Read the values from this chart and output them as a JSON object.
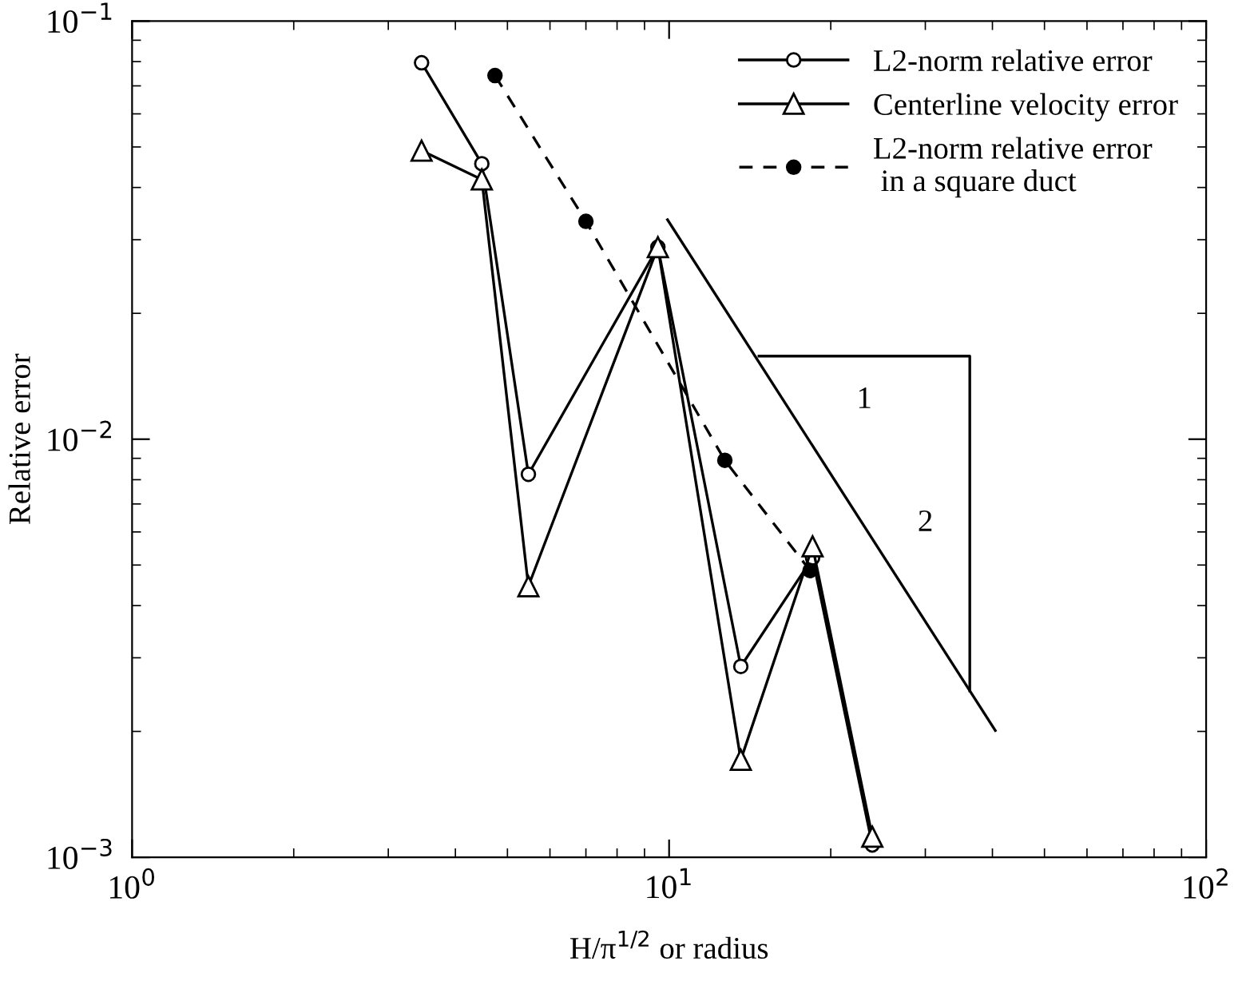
{
  "chart_data": {
    "type": "line",
    "xlabel": "H/π$^{1/2}$ or radius",
    "ylabel": "Relative error",
    "log": "xy",
    "grid": false,
    "legend": "top right",
    "xlim": [
      1,
      100
    ],
    "ylim": [
      0.001,
      0.1
    ],
    "xticks": [
      {
        "value": 1,
        "label": "10$^{0}$"
      },
      {
        "value": 10,
        "label": "10$^{1}$"
      },
      {
        "value": 100,
        "label": "10$^{2}$"
      }
    ],
    "yticks": [
      {
        "value": 0.001,
        "label": "10$^{−3}$"
      },
      {
        "value": 0.01,
        "label": "10$^{−2}$"
      },
      {
        "value": 0.1,
        "label": "10$^{−1}$"
      }
    ],
    "series": [
      {
        "name": "L2-norm relative error",
        "color": "#000000",
        "marker": "circle",
        "line_style": "solid",
        "x": [
          3.46,
          4.48,
          5.47,
          9.53,
          13.6,
          18.5,
          23.9
        ],
        "values": [
          0.0795,
          0.0456,
          0.00824,
          0.0288,
          0.00286,
          0.0052,
          0.00107
        ]
      },
      {
        "name": "Centerline velocity error",
        "color": "#000000",
        "marker": "triangle",
        "line_style": "solid",
        "x": [
          3.46,
          4.48,
          5.47,
          9.53,
          13.6,
          18.5,
          23.9
        ],
        "values": [
          0.049,
          0.0418,
          0.00445,
          0.0288,
          0.00171,
          0.00554,
          0.00112
        ]
      },
      {
        "name": "L2-norm relative error\n in a square duct",
        "color": "#000000",
        "marker": "circle",
        "line_style": "dashed",
        "x": [
          4.74,
          7.0,
          12.7,
          18.3
        ],
        "values": [
          0.0741,
          0.0332,
          0.0089,
          0.00485
        ]
      },
      {
        "color": "#000000",
        "marker": "none",
        "line_style": "solid",
        "x": [
          9.93,
          40.5
        ],
        "values": [
          0.0335,
          0.00201
        ]
      },
      {
        "color": "#000000",
        "marker": "none",
        "line_style": "solid",
        "x": [
          14.7,
          36.3,
          36.3
        ],
        "values": [
          0.0158,
          0.0158,
          0.0025
        ]
      }
    ],
    "annotations": [
      "1",
      "2"
    ]
  }
}
